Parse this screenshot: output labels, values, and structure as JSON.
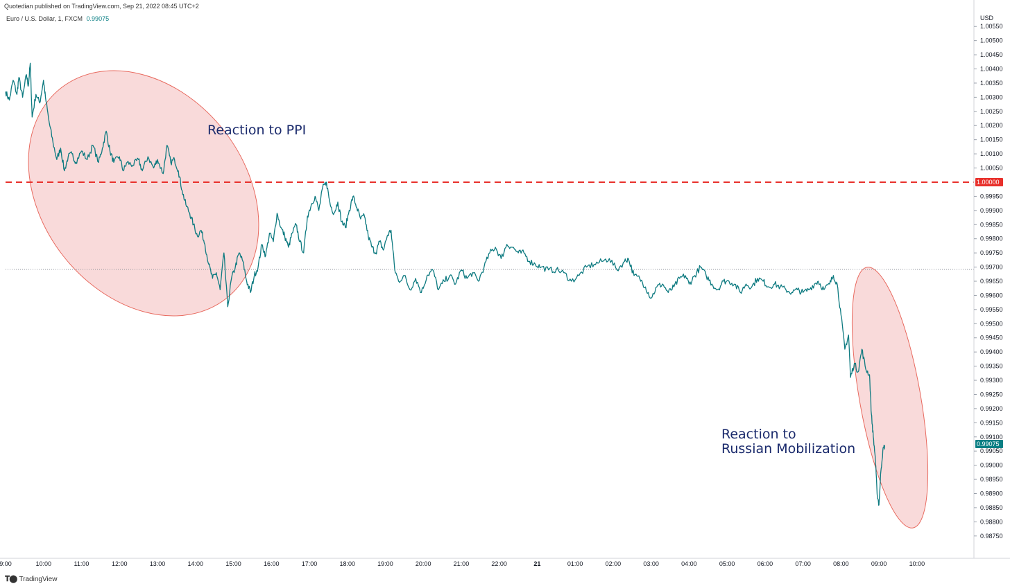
{
  "header": {
    "publisher": "Quotedian published on TradingView.com, Sep 21, 2022 08:45 UTC+2",
    "symbol": "Euro / U.S. Dollar, 1, FXCM",
    "last_price": "0.99075",
    "brand": "TradingView"
  },
  "chart_data": {
    "type": "line",
    "currency_label": "USD",
    "y_ticks": [
      "1.00550",
      "1.00500",
      "1.00450",
      "1.00400",
      "1.00350",
      "1.00300",
      "1.00250",
      "1.00200",
      "1.00150",
      "1.00100",
      "1.00050",
      "0.99950",
      "0.99900",
      "0.99850",
      "0.99800",
      "0.99750",
      "0.99700",
      "0.99650",
      "0.99600",
      "0.99550",
      "0.99500",
      "0.99450",
      "0.99400",
      "0.99350",
      "0.99300",
      "0.99250",
      "0.99200",
      "0.99150",
      "0.99100",
      "0.99050",
      "0.99000",
      "0.98950",
      "0.98900",
      "0.98850",
      "0.98800",
      "0.98750"
    ],
    "y_range": [
      0.98725,
      1.00575
    ],
    "x_ticks": [
      "9:00",
      "10:00",
      "11:00",
      "12:00",
      "13:00",
      "14:00",
      "15:00",
      "16:00",
      "17:00",
      "18:00",
      "19:00",
      "20:00",
      "21:00",
      "22:00",
      "21",
      "01:00",
      "02:00",
      "03:00",
      "04:00",
      "05:00",
      "06:00",
      "07:00",
      "08:00",
      "09:00",
      "10:00"
    ],
    "x_range_hours": [
      9.0,
      34.5
    ],
    "series": [
      {
        "color": "#0d7a80",
        "points": [
          [
            9.0,
            1.0032
          ],
          [
            9.1,
            1.0029
          ],
          [
            9.2,
            1.0036
          ],
          [
            9.3,
            1.0031
          ],
          [
            9.35,
            1.0037
          ],
          [
            9.45,
            1.003
          ],
          [
            9.55,
            1.0038
          ],
          [
            9.6,
            1.0034
          ],
          [
            9.65,
            1.0042
          ],
          [
            9.7,
            1.0023
          ],
          [
            9.8,
            1.0031
          ],
          [
            9.9,
            1.0028
          ],
          [
            10.0,
            1.0036
          ],
          [
            10.05,
            1.003
          ],
          [
            10.15,
            1.0021
          ],
          [
            10.25,
            1.0014
          ],
          [
            10.35,
            1.0008
          ],
          [
            10.45,
            1.0012
          ],
          [
            10.55,
            1.0004
          ],
          [
            10.65,
            1.0009
          ],
          [
            10.75,
            1.001
          ],
          [
            10.85,
            1.0007
          ],
          [
            11.0,
            1.0011
          ],
          [
            11.15,
            1.0008
          ],
          [
            11.3,
            1.0013
          ],
          [
            11.45,
            1.0007
          ],
          [
            11.55,
            1.0012
          ],
          [
            11.65,
            1.0018
          ],
          [
            11.75,
            1.0011
          ],
          [
            11.85,
            1.0007
          ],
          [
            12.0,
            1.0009
          ],
          [
            12.1,
            1.0004
          ],
          [
            12.2,
            1.0007
          ],
          [
            12.35,
            1.0006
          ],
          [
            12.5,
            1.0008
          ],
          [
            12.6,
            1.0004
          ],
          [
            12.75,
            1.0009
          ],
          [
            12.9,
            1.0005
          ],
          [
            13.0,
            1.0008
          ],
          [
            13.15,
            1.0003
          ],
          [
            13.25,
            1.0013
          ],
          [
            13.35,
            1.0007
          ],
          [
            13.45,
            1.0008
          ],
          [
            13.55,
            1.0004
          ],
          [
            13.65,
            0.9997
          ],
          [
            13.75,
            0.9992
          ],
          [
            13.85,
            0.9989
          ],
          [
            13.95,
            0.9985
          ],
          [
            14.05,
            0.9981
          ],
          [
            14.15,
            0.9983
          ],
          [
            14.25,
            0.9978
          ],
          [
            14.35,
            0.9971
          ],
          [
            14.45,
            0.9966
          ],
          [
            14.55,
            0.9968
          ],
          [
            14.65,
            0.9962
          ],
          [
            14.75,
            0.9975
          ],
          [
            14.85,
            0.9956
          ],
          [
            14.95,
            0.9966
          ],
          [
            15.05,
            0.997
          ],
          [
            15.15,
            0.9975
          ],
          [
            15.25,
            0.9972
          ],
          [
            15.35,
            0.9965
          ],
          [
            15.45,
            0.9961
          ],
          [
            15.55,
            0.9967
          ],
          [
            15.65,
            0.997
          ],
          [
            15.75,
            0.9978
          ],
          [
            15.85,
            0.9974
          ],
          [
            15.95,
            0.9982
          ],
          [
            16.05,
            0.9979
          ],
          [
            16.15,
            0.9989
          ],
          [
            16.25,
            0.9984
          ],
          [
            16.35,
            0.9981
          ],
          [
            16.45,
            0.9977
          ],
          [
            16.55,
            0.9982
          ],
          [
            16.65,
            0.9985
          ],
          [
            16.75,
            0.9979
          ],
          [
            16.85,
            0.9975
          ],
          [
            16.95,
            0.9988
          ],
          [
            17.05,
            0.9992
          ],
          [
            17.15,
            0.9995
          ],
          [
            17.25,
            0.999
          ],
          [
            17.35,
            0.9998
          ],
          [
            17.45,
            1.0
          ],
          [
            17.55,
            0.9992
          ],
          [
            17.65,
            0.9989
          ],
          [
            17.75,
            0.9993
          ],
          [
            17.85,
            0.9986
          ],
          [
            17.95,
            0.9984
          ],
          [
            18.05,
            0.999
          ],
          [
            18.15,
            0.9995
          ],
          [
            18.25,
            0.9991
          ],
          [
            18.35,
            0.9987
          ],
          [
            18.45,
            0.9988
          ],
          [
            18.55,
            0.9981
          ],
          [
            18.65,
            0.9977
          ],
          [
            18.75,
            0.9975
          ],
          [
            18.85,
            0.9979
          ],
          [
            18.95,
            0.9976
          ],
          [
            19.05,
            0.9981
          ],
          [
            19.15,
            0.9983
          ],
          [
            19.25,
            0.9969
          ],
          [
            19.35,
            0.9965
          ],
          [
            19.5,
            0.9967
          ],
          [
            19.65,
            0.9962
          ],
          [
            19.8,
            0.9966
          ],
          [
            19.95,
            0.9961
          ],
          [
            20.1,
            0.9967
          ],
          [
            20.25,
            0.9969
          ],
          [
            20.4,
            0.9962
          ],
          [
            20.55,
            0.9965
          ],
          [
            20.7,
            0.9967
          ],
          [
            20.85,
            0.9964
          ],
          [
            21.0,
            0.9969
          ],
          [
            21.15,
            0.9966
          ],
          [
            21.3,
            0.9968
          ],
          [
            21.45,
            0.9965
          ],
          [
            21.6,
            0.997
          ],
          [
            21.75,
            0.9975
          ],
          [
            21.9,
            0.9977
          ],
          [
            22.05,
            0.9973
          ],
          [
            22.2,
            0.9978
          ],
          [
            22.35,
            0.9977
          ],
          [
            22.5,
            0.9975
          ],
          [
            22.65,
            0.9975
          ],
          [
            22.8,
            0.9972
          ],
          [
            22.95,
            0.9971
          ],
          [
            23.1,
            0.997
          ],
          [
            23.3,
            0.9969
          ],
          [
            23.5,
            0.9969
          ],
          [
            23.7,
            0.9968
          ],
          [
            23.9,
            0.9965
          ],
          [
            24.1,
            0.9967
          ],
          [
            24.3,
            0.997
          ],
          [
            24.5,
            0.9971
          ],
          [
            24.7,
            0.9972
          ],
          [
            24.9,
            0.9973
          ],
          [
            25.1,
            0.9969
          ],
          [
            25.3,
            0.9972
          ],
          [
            25.4,
            0.9973
          ],
          [
            25.55,
            0.9967
          ],
          [
            25.7,
            0.9966
          ],
          [
            25.85,
            0.9963
          ],
          [
            26.0,
            0.9959
          ],
          [
            26.15,
            0.9963
          ],
          [
            26.3,
            0.9964
          ],
          [
            26.45,
            0.9961
          ],
          [
            26.6,
            0.9963
          ],
          [
            26.75,
            0.9966
          ],
          [
            26.9,
            0.9967
          ],
          [
            27.0,
            0.9964
          ],
          [
            27.15,
            0.9967
          ],
          [
            27.3,
            0.997
          ],
          [
            27.45,
            0.9967
          ],
          [
            27.6,
            0.9964
          ],
          [
            27.75,
            0.9962
          ],
          [
            27.9,
            0.9965
          ],
          [
            28.05,
            0.9965
          ],
          [
            28.2,
            0.9964
          ],
          [
            28.35,
            0.9961
          ],
          [
            28.5,
            0.9964
          ],
          [
            28.65,
            0.9963
          ],
          [
            28.8,
            0.9966
          ],
          [
            28.95,
            0.9965
          ],
          [
            29.1,
            0.9963
          ],
          [
            29.25,
            0.9964
          ],
          [
            29.4,
            0.9963
          ],
          [
            29.55,
            0.9962
          ],
          [
            29.7,
            0.9961
          ],
          [
            29.85,
            0.9962
          ],
          [
            30.0,
            0.9961
          ],
          [
            30.15,
            0.9962
          ],
          [
            30.3,
            0.9964
          ],
          [
            30.4,
            0.9965
          ],
          [
            30.55,
            0.9962
          ],
          [
            30.7,
            0.9964
          ],
          [
            30.8,
            0.9967
          ],
          [
            30.9,
            0.9964
          ],
          [
            31.0,
            0.9953
          ],
          [
            31.1,
            0.9941
          ],
          [
            31.2,
            0.9946
          ],
          [
            31.25,
            0.9931
          ],
          [
            31.35,
            0.9936
          ],
          [
            31.45,
            0.9933
          ],
          [
            31.55,
            0.9941
          ],
          [
            31.65,
            0.9934
          ],
          [
            31.75,
            0.9932
          ],
          [
            31.8,
            0.9918
          ],
          [
            31.85,
            0.991
          ],
          [
            31.9,
            0.9903
          ],
          [
            31.95,
            0.989
          ],
          [
            32.0,
            0.9886
          ],
          [
            32.05,
            0.9898
          ],
          [
            32.1,
            0.9905
          ],
          [
            32.15,
            0.9907
          ]
        ]
      }
    ],
    "resistance_level": "1.00000",
    "reference_level": 0.99692,
    "annotations": [
      {
        "lines": [
          "Reaction to PPI"
        ]
      },
      {
        "lines": [
          "Reaction to",
          "Russian Mobilization"
        ]
      }
    ],
    "colors": {
      "line": "#0d7a80",
      "level_line": "#e8302b",
      "last_price_tag": "#0a7f84",
      "ellipse_fill": "#f8d3d3",
      "ellipse_stroke": "#e86a5f",
      "annotation_text": "#1a2a6c"
    }
  }
}
